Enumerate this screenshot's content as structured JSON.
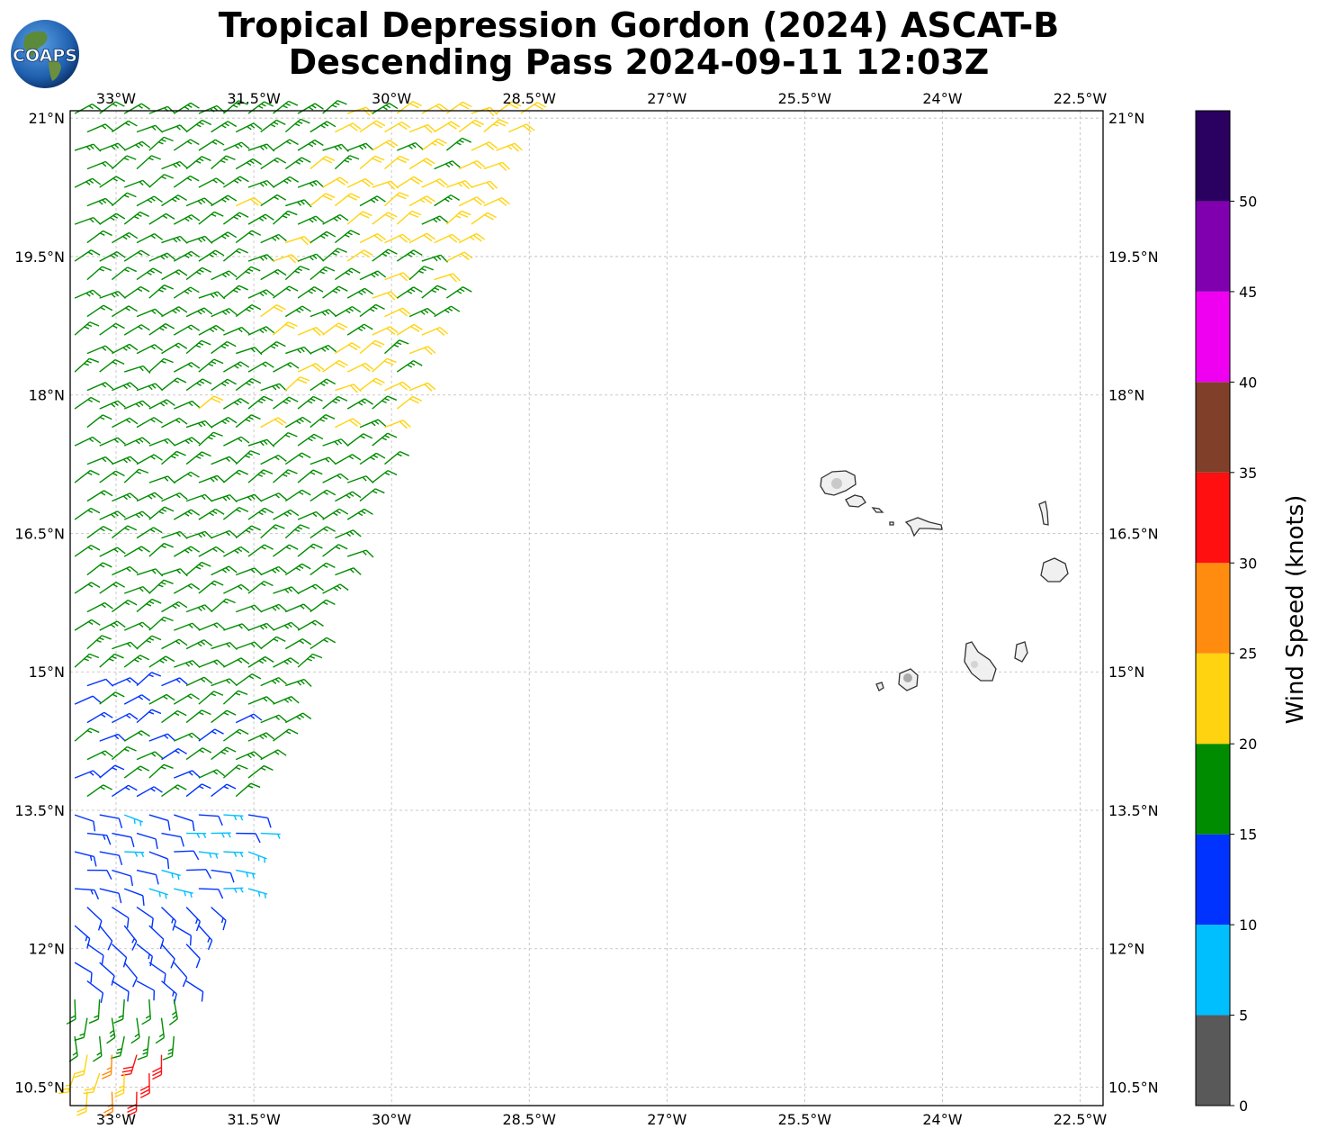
{
  "title": {
    "line1": "Tropical Depression Gordon (2024) ASCAT-B",
    "line2": "Descending Pass 2024-09-11 12:03Z"
  },
  "logo_text": "COAPS",
  "map": {
    "lon_range": [
      -33.5,
      -22.25
    ],
    "lat_range": [
      10.3,
      21.08
    ],
    "lon_ticks": [
      {
        "value": -33.0,
        "label": "33°W"
      },
      {
        "value": -31.5,
        "label": "31.5°W"
      },
      {
        "value": -30.0,
        "label": "30°W"
      },
      {
        "value": -28.5,
        "label": "28.5°W"
      },
      {
        "value": -27.0,
        "label": "27°W"
      },
      {
        "value": -25.5,
        "label": "25.5°W"
      },
      {
        "value": -24.0,
        "label": "24°W"
      },
      {
        "value": -22.5,
        "label": "22.5°W"
      }
    ],
    "lat_ticks": [
      {
        "value": 21.0,
        "label": "21°N"
      },
      {
        "value": 19.5,
        "label": "19.5°N"
      },
      {
        "value": 18.0,
        "label": "18°N"
      },
      {
        "value": 16.5,
        "label": "16.5°N"
      },
      {
        "value": 15.0,
        "label": "15°N"
      },
      {
        "value": 13.5,
        "label": "13.5°N"
      },
      {
        "value": 12.0,
        "label": "12°N"
      },
      {
        "value": 10.5,
        "label": "10.5°N"
      }
    ],
    "gridlines": true,
    "land_features": "Cape Verde islands outlined in dark gray"
  },
  "colorbar": {
    "label": "Wind Speed (knots)",
    "ticks": [
      "0",
      "5",
      "10",
      "15",
      "20",
      "25",
      "30",
      "35",
      "40",
      "45",
      "50"
    ],
    "bins": [
      {
        "min": 0,
        "max": 5,
        "color": "#595959"
      },
      {
        "min": 5,
        "max": 10,
        "color": "#00bfff"
      },
      {
        "min": 10,
        "max": 15,
        "color": "#0033ff"
      },
      {
        "min": 15,
        "max": 20,
        "color": "#008c00"
      },
      {
        "min": 20,
        "max": 25,
        "color": "#ffd30f"
      },
      {
        "min": 25,
        "max": 30,
        "color": "#ff8c0f"
      },
      {
        "min": 30,
        "max": 35,
        "color": "#ff0f0f"
      },
      {
        "min": 35,
        "max": 40,
        "color": "#7f3f29"
      },
      {
        "min": 40,
        "max": 45,
        "color": "#f000f0"
      },
      {
        "min": 45,
        "max": 50,
        "color": "#8000b0"
      },
      {
        "min": 50,
        "max": 55,
        "color": "#2a0060"
      }
    ]
  },
  "wind_regions": [
    {
      "lat_min": 19.6,
      "lat_max": 21.1,
      "speed_west": 17,
      "speed_east": 22,
      "dir_deg": 60
    },
    {
      "lat_min": 17.6,
      "lat_max": 19.6,
      "speed_west": 17,
      "speed_east": 21,
      "dir_deg": 60
    },
    {
      "lat_min": 15.0,
      "lat_max": 17.6,
      "speed_west": 17,
      "speed_east": 17,
      "dir_deg": 60
    },
    {
      "lat_min": 13.5,
      "lat_max": 15.0,
      "speed_west": 14,
      "speed_east": 17,
      "dir_deg": 60
    },
    {
      "lat_min": 12.6,
      "lat_max": 13.5,
      "speed_west": 12,
      "speed_east": 8,
      "dir_deg": 100
    },
    {
      "lat_min": 11.5,
      "lat_max": 12.6,
      "speed_west": 12,
      "speed_east": 13,
      "dir_deg": 130
    },
    {
      "lat_min": 10.9,
      "lat_max": 11.5,
      "speed_west": 17,
      "speed_east": 17,
      "dir_deg": 180
    },
    {
      "lat_min": 10.3,
      "lat_max": 10.9,
      "speed_west": 22,
      "speed_east": 28,
      "dir_deg": 190
    }
  ]
}
